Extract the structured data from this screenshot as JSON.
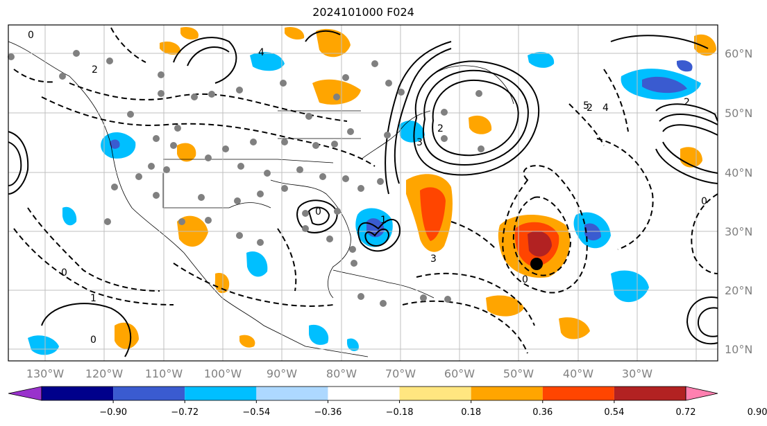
{
  "title": "2024101000 F024",
  "map": {
    "lon_ticks": [
      "130°W",
      "120°W",
      "110°W",
      "100°W",
      "90°W",
      "80°W",
      "70°W",
      "60°W",
      "50°W",
      "40°W",
      "30°W"
    ],
    "lat_ticks": [
      "60°N",
      "50°N",
      "40°N",
      "30°N",
      "20°N",
      "10°N"
    ]
  },
  "colorbar": {
    "labels": [
      "−0.90",
      "−0.72",
      "−0.54",
      "−0.36",
      "−0.18",
      "0.18",
      "0.36",
      "0.54",
      "0.72",
      "0.90"
    ],
    "colors": [
      "#9932cc",
      "#00008b",
      "#3a5bd0",
      "#00bfff",
      "#add8ff",
      "#ffffff",
      "#ffe680",
      "#ffa500",
      "#ff4500",
      "#b22222",
      "#ff80b0"
    ],
    "extend": "both"
  },
  "contour_labels": [
    "0",
    "2",
    "4",
    "1",
    "2",
    "0",
    "3",
    "5",
    "0",
    "0",
    "3",
    "1",
    "2",
    "0",
    "2",
    "4",
    "0"
  ],
  "center_marker_color": "#000000",
  "station_color": "#808080"
}
